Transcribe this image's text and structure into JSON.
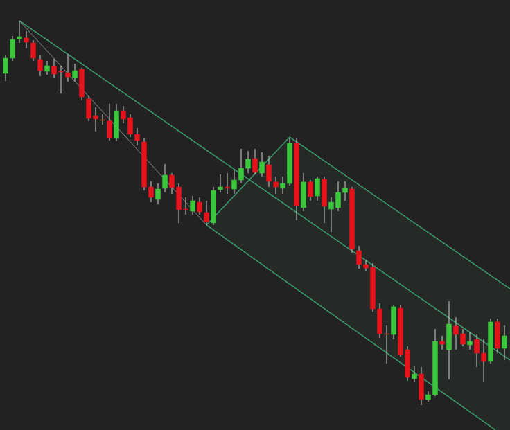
{
  "chart_data": {
    "type": "candlestick",
    "ylim": [
      0,
      621
    ],
    "up_color": "#3cc63c",
    "down_color": "#e5131c",
    "wick_color": "#d0d0d0",
    "open": [
      515,
      537,
      565,
      566,
      559,
      535,
      518,
      525,
      518,
      516,
      509,
      521,
      478,
      454,
      448,
      446,
      421,
      461,
      451,
      427,
      416,
      351,
      333,
      349,
      368,
      351,
      319,
      316,
      329,
      314,
      299,
      347,
      351,
      348,
      361,
      378,
      392,
      371,
      383,
      358,
      349,
      356,
      414,
      321,
      358,
      338,
      362,
      319,
      321,
      343,
      348,
      259,
      239,
      235,
      175,
      139,
      138,
      176,
      116,
      74,
      81,
      44,
      51,
      128,
      116,
      150,
      139,
      123,
      131,
      111,
      99,
      156,
      118
    ],
    "high": [
      541,
      569,
      591,
      576,
      563,
      541,
      533,
      536,
      526,
      543,
      529,
      523,
      483,
      466,
      456,
      471,
      471,
      468,
      456,
      436,
      421,
      359,
      356,
      384,
      371,
      356,
      336,
      338,
      336,
      331,
      351,
      369,
      371,
      376,
      406,
      403,
      406,
      401,
      396,
      366,
      366,
      421,
      421,
      371,
      361,
      366,
      366,
      336,
      359,
      359,
      351,
      266,
      246,
      241,
      183,
      151,
      181,
      181,
      121,
      93,
      91,
      56,
      146,
      136,
      186,
      163,
      146,
      141,
      138,
      131,
      161,
      161,
      151
    ],
    "low": [
      504,
      533,
      559,
      551,
      533,
      511,
      513,
      509,
      486,
      503,
      503,
      476,
      446,
      431,
      441,
      418,
      417,
      443,
      423,
      411,
      346,
      329,
      326,
      343,
      341,
      299,
      311,
      311,
      311,
      296,
      296,
      343,
      341,
      341,
      356,
      371,
      369,
      366,
      351,
      341,
      341,
      353,
      303,
      316,
      331,
      331,
      299,
      286,
      316,
      331,
      256,
      233,
      229,
      171,
      133,
      96,
      131,
      106,
      71,
      69,
      36,
      41,
      49,
      116,
      73,
      116,
      121,
      116,
      91,
      69,
      96,
      111,
      101
    ],
    "close": [
      537,
      564,
      568,
      560,
      537,
      519,
      526,
      514,
      517,
      510,
      519,
      481,
      450,
      449,
      447,
      421,
      461,
      449,
      427,
      418,
      351,
      336,
      348,
      368,
      350,
      318,
      318,
      331,
      315,
      301,
      346,
      351,
      349,
      361,
      378,
      391,
      372,
      387,
      359,
      351,
      356,
      414,
      324,
      358,
      337,
      363,
      323,
      329,
      343,
      349,
      261,
      239,
      234,
      175,
      139,
      138,
      178,
      109,
      76,
      81,
      44,
      51,
      128,
      124,
      153,
      138,
      124,
      128,
      111,
      99,
      156,
      118,
      136
    ]
  }
}
